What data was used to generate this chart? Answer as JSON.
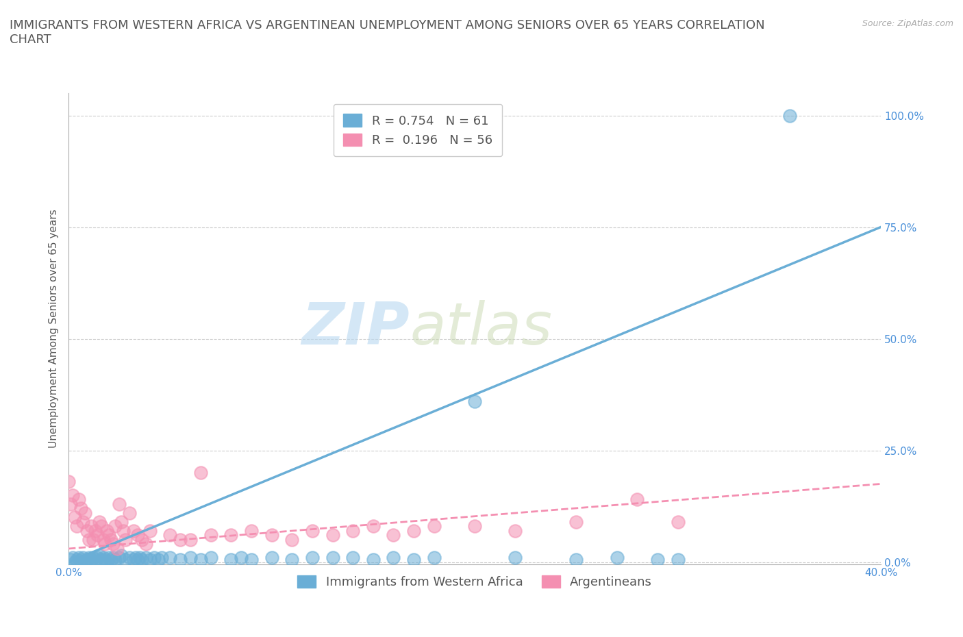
{
  "title": "IMMIGRANTS FROM WESTERN AFRICA VS ARGENTINEAN UNEMPLOYMENT AMONG SENIORS OVER 65 YEARS CORRELATION\nCHART",
  "source_text": "Source: ZipAtlas.com",
  "ylabel": "Unemployment Among Seniors over 65 years",
  "watermark_left": "ZIP",
  "watermark_right": "atlas",
  "xlim": [
    0.0,
    0.4
  ],
  "ylim": [
    -0.005,
    1.05
  ],
  "xticks": [
    0.0,
    0.05,
    0.1,
    0.15,
    0.2,
    0.25,
    0.3,
    0.35,
    0.4
  ],
  "yticks": [
    0.0,
    0.25,
    0.5,
    0.75,
    1.0
  ],
  "ytick_labels": [
    "0.0%",
    "25.0%",
    "50.0%",
    "75.0%",
    "100.0%"
  ],
  "blue_R": 0.754,
  "blue_N": 61,
  "pink_R": 0.196,
  "pink_N": 56,
  "blue_color": "#6aaed6",
  "pink_color": "#f48fb1",
  "blue_scatter": [
    [
      0.001,
      0.005
    ],
    [
      0.002,
      0.01
    ],
    [
      0.003,
      0.0
    ],
    [
      0.004,
      0.005
    ],
    [
      0.005,
      0.01
    ],
    [
      0.006,
      0.005
    ],
    [
      0.007,
      0.01
    ],
    [
      0.008,
      0.0
    ],
    [
      0.009,
      0.005
    ],
    [
      0.01,
      0.01
    ],
    [
      0.011,
      0.005
    ],
    [
      0.012,
      0.01
    ],
    [
      0.013,
      0.005
    ],
    [
      0.014,
      0.01
    ],
    [
      0.015,
      0.015
    ],
    [
      0.016,
      0.005
    ],
    [
      0.017,
      0.01
    ],
    [
      0.018,
      0.005
    ],
    [
      0.019,
      0.0
    ],
    [
      0.02,
      0.01
    ],
    [
      0.021,
      0.005
    ],
    [
      0.022,
      0.01
    ],
    [
      0.023,
      0.005
    ],
    [
      0.025,
      0.01
    ],
    [
      0.026,
      0.015
    ],
    [
      0.028,
      0.005
    ],
    [
      0.03,
      0.01
    ],
    [
      0.032,
      0.005
    ],
    [
      0.033,
      0.01
    ],
    [
      0.034,
      0.005
    ],
    [
      0.035,
      0.01
    ],
    [
      0.036,
      0.005
    ],
    [
      0.038,
      0.01
    ],
    [
      0.04,
      0.005
    ],
    [
      0.042,
      0.01
    ],
    [
      0.044,
      0.005
    ],
    [
      0.046,
      0.01
    ],
    [
      0.05,
      0.01
    ],
    [
      0.055,
      0.005
    ],
    [
      0.06,
      0.01
    ],
    [
      0.065,
      0.005
    ],
    [
      0.07,
      0.01
    ],
    [
      0.08,
      0.005
    ],
    [
      0.085,
      0.01
    ],
    [
      0.09,
      0.005
    ],
    [
      0.1,
      0.01
    ],
    [
      0.11,
      0.005
    ],
    [
      0.12,
      0.01
    ],
    [
      0.13,
      0.01
    ],
    [
      0.14,
      0.01
    ],
    [
      0.15,
      0.005
    ],
    [
      0.16,
      0.01
    ],
    [
      0.17,
      0.005
    ],
    [
      0.18,
      0.01
    ],
    [
      0.2,
      0.36
    ],
    [
      0.22,
      0.01
    ],
    [
      0.25,
      0.005
    ],
    [
      0.27,
      0.01
    ],
    [
      0.29,
      0.005
    ],
    [
      0.3,
      0.005
    ],
    [
      0.355,
      1.0
    ]
  ],
  "pink_scatter": [
    [
      0.0,
      0.18
    ],
    [
      0.001,
      0.13
    ],
    [
      0.002,
      0.15
    ],
    [
      0.003,
      0.1
    ],
    [
      0.004,
      0.08
    ],
    [
      0.005,
      0.14
    ],
    [
      0.006,
      0.12
    ],
    [
      0.007,
      0.09
    ],
    [
      0.008,
      0.11
    ],
    [
      0.009,
      0.07
    ],
    [
      0.01,
      0.05
    ],
    [
      0.011,
      0.08
    ],
    [
      0.012,
      0.05
    ],
    [
      0.013,
      0.07
    ],
    [
      0.014,
      0.06
    ],
    [
      0.015,
      0.09
    ],
    [
      0.016,
      0.08
    ],
    [
      0.017,
      0.05
    ],
    [
      0.018,
      0.04
    ],
    [
      0.019,
      0.07
    ],
    [
      0.02,
      0.06
    ],
    [
      0.021,
      0.05
    ],
    [
      0.022,
      0.04
    ],
    [
      0.023,
      0.08
    ],
    [
      0.024,
      0.03
    ],
    [
      0.025,
      0.13
    ],
    [
      0.026,
      0.09
    ],
    [
      0.027,
      0.07
    ],
    [
      0.028,
      0.05
    ],
    [
      0.03,
      0.11
    ],
    [
      0.032,
      0.07
    ],
    [
      0.034,
      0.06
    ],
    [
      0.036,
      0.05
    ],
    [
      0.038,
      0.04
    ],
    [
      0.04,
      0.07
    ],
    [
      0.05,
      0.06
    ],
    [
      0.055,
      0.05
    ],
    [
      0.06,
      0.05
    ],
    [
      0.065,
      0.2
    ],
    [
      0.07,
      0.06
    ],
    [
      0.08,
      0.06
    ],
    [
      0.09,
      0.07
    ],
    [
      0.1,
      0.06
    ],
    [
      0.11,
      0.05
    ],
    [
      0.12,
      0.07
    ],
    [
      0.13,
      0.06
    ],
    [
      0.14,
      0.07
    ],
    [
      0.15,
      0.08
    ],
    [
      0.16,
      0.06
    ],
    [
      0.17,
      0.07
    ],
    [
      0.18,
      0.08
    ],
    [
      0.2,
      0.08
    ],
    [
      0.22,
      0.07
    ],
    [
      0.25,
      0.09
    ],
    [
      0.28,
      0.14
    ],
    [
      0.3,
      0.09
    ]
  ],
  "blue_trend_x": [
    0.0,
    0.4
  ],
  "blue_trend_y": [
    0.0,
    0.75
  ],
  "pink_trend_x": [
    0.0,
    0.4
  ],
  "pink_trend_y": [
    0.03,
    0.175
  ],
  "bg_color": "#ffffff",
  "grid_color": "#cccccc",
  "title_fontsize": 13,
  "axis_fontsize": 11,
  "tick_fontsize": 11,
  "legend_fontsize": 13
}
